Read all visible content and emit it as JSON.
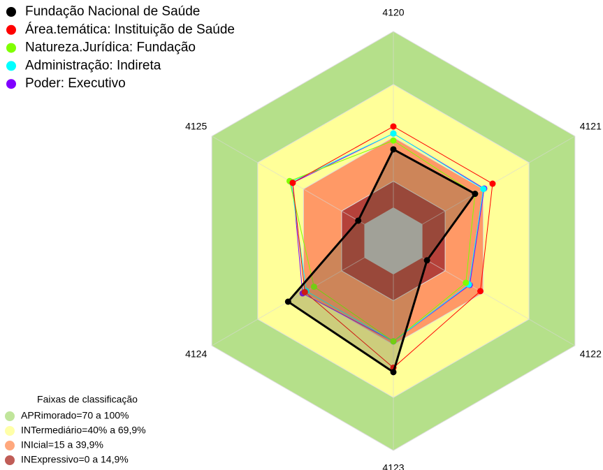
{
  "chart_data": {
    "type": "radar",
    "categories": [
      "4120",
      "4121",
      "4122",
      "4123",
      "4124",
      "4125"
    ],
    "rlim": [
      0,
      100
    ],
    "series": [
      {
        "name": "Fundação Nacional de Saúde",
        "color": "#000000",
        "values": [
          33,
          34.5,
          3,
          55.5,
          50,
          4
        ]
      },
      {
        "name": "Área.temática: Instituição de Saúde",
        "color": "#ff0000",
        "values": [
          46,
          46,
          38,
          53,
          39,
          47
        ]
      },
      {
        "name": "Natureza.Jurídica: Fundação",
        "color": "#7fff00",
        "values": [
          38,
          34.5,
          28.5,
          38,
          33,
          49
        ]
      },
      {
        "name": "Administração: Indireta",
        "color": "#00ffff",
        "values": [
          42,
          40,
          30.5,
          38,
          38,
          48
        ]
      },
      {
        "name": "Poder: Executivo",
        "color": "#8000ff",
        "values": [
          42,
          40.5,
          31,
          38,
          40.5,
          47
        ]
      }
    ],
    "bands_title": "Faixas de classificação",
    "bands": [
      {
        "label": "APRimorado=70 a 100%",
        "color": "#b5e08a",
        "range": [
          70,
          100
        ]
      },
      {
        "label": "INTermediário=40% a 69,9%",
        "color": "#ffff99",
        "range": [
          40,
          69.9
        ]
      },
      {
        "label": "INIcial=15 a 39,9%",
        "color": "#ff9966",
        "range": [
          15,
          39.9
        ]
      },
      {
        "label": "INExpressivo=0 a 14,9%",
        "color": "#b5413a",
        "range": [
          0,
          14.9
        ]
      }
    ]
  }
}
